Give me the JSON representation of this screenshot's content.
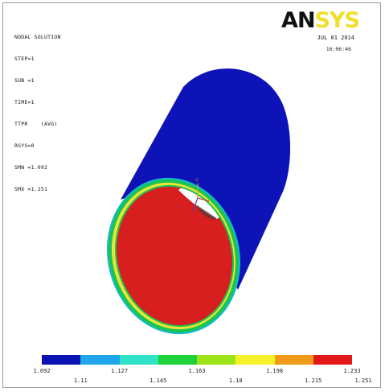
{
  "header": {
    "info_lines": [
      "NODAL SOLUTION",
      "STEP=1",
      "SUB =1",
      "TIME=1",
      "TTPR    (AVG)",
      "RSYS=0",
      "SMN =1.092",
      "SMX =1.251"
    ],
    "logo_left": "AN",
    "logo_right": "SYS",
    "date": "JUL 01 2014",
    "time": "16:06:46"
  },
  "legend": {
    "colors": [
      "#0b12b4",
      "#1fa6ea",
      "#2fe2c8",
      "#1fd23a",
      "#9ee21a",
      "#f4f02a",
      "#f09a1a",
      "#e01818"
    ],
    "upper_labels": [
      "1.092",
      "1.127",
      "1.163",
      "1.198",
      "1.233"
    ],
    "lower_labels": [
      "1.11",
      "1.145",
      "1.18",
      "1.215",
      "1.251"
    ]
  },
  "model": {
    "outer_surface_color": "#0d13b6",
    "inner_surface_color": "#d71f1f",
    "ring_outer_color": "#19c455",
    "ring_mid_color": "#e8e534",
    "ring_edge_color": "#15b9cc"
  }
}
